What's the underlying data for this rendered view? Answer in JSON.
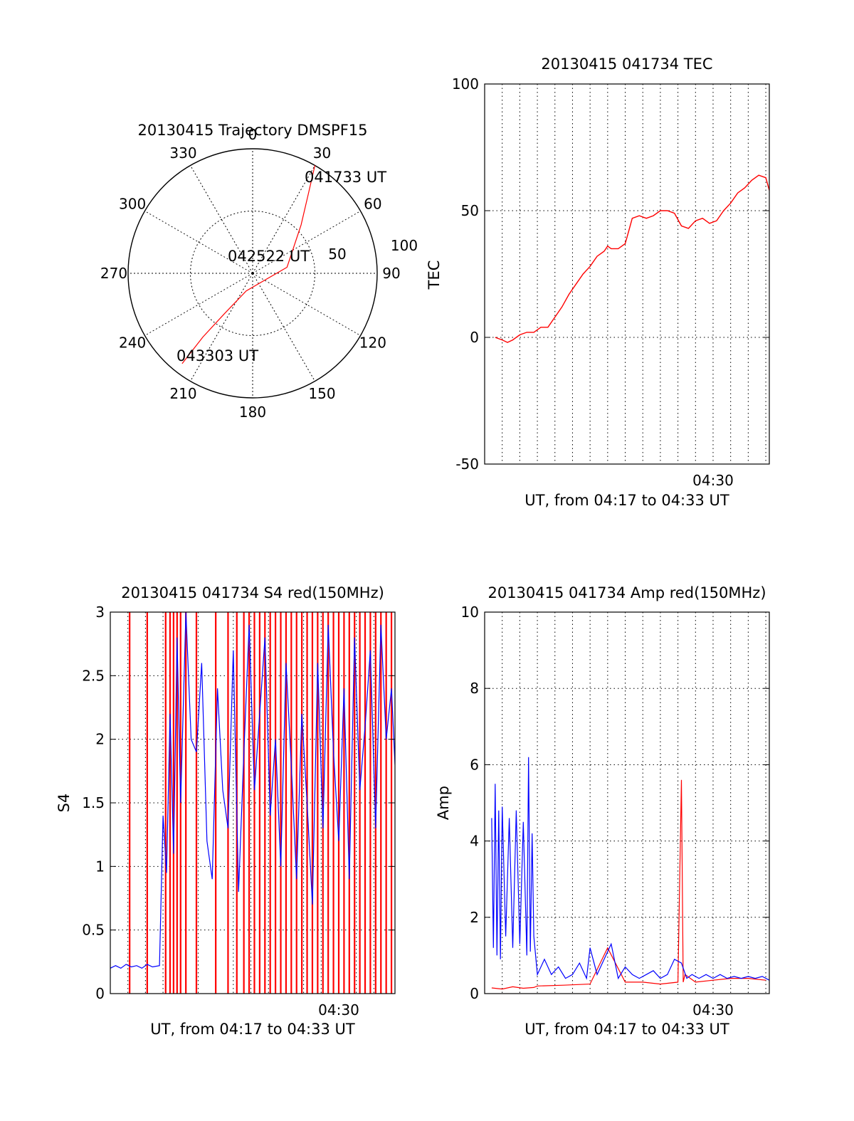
{
  "colors": {
    "red": "#ff0000",
    "blue": "#0000ff",
    "axes": "#000000",
    "grid": "#000000"
  },
  "chart_data": [
    {
      "id": "trajectory",
      "type": "polar",
      "title": "20130415 Trajectory DMSPF15",
      "angle_labels": [
        "0",
        "30",
        "60",
        "90",
        "120",
        "150",
        "180",
        "210",
        "240",
        "270",
        "300",
        "330"
      ],
      "angle_values": [
        0,
        30,
        60,
        90,
        120,
        150,
        180,
        210,
        240,
        270,
        300,
        330
      ],
      "radial_labels": [
        "50",
        "100"
      ],
      "radial_values": [
        50,
        100
      ],
      "rmax": 100,
      "grid": true,
      "annotations": [
        "041733 UT",
        "042522 UT",
        "043303 UT"
      ],
      "series": [
        {
          "color": "red",
          "points": [
            [
              30,
              100
            ],
            [
              35,
              78
            ],
            [
              45,
              55
            ],
            [
              80,
              28
            ],
            [
              200,
              15
            ],
            [
              215,
              40
            ],
            [
              218,
              65
            ],
            [
              218,
              92
            ]
          ]
        }
      ]
    },
    {
      "id": "tec",
      "type": "line",
      "title": "20130415 041734 TEC",
      "xlabel": "UT, from 04:17 to 04:33 UT",
      "ylabel": "TEC",
      "xlim": [
        0,
        16.2
      ],
      "ylim": [
        -50,
        100
      ],
      "yticks": [
        "100",
        "50",
        "0",
        "-50"
      ],
      "xtick_label": "04:30",
      "xtick_value": 13,
      "grid": true,
      "series": [
        {
          "color": "red",
          "x": [
            0.6,
            1.0,
            1.3,
            1.6,
            2.0,
            2.4,
            2.8,
            3.2,
            3.6,
            4.0,
            4.4,
            4.8,
            5.2,
            5.6,
            6.0,
            6.4,
            6.8,
            7.0,
            7.2,
            7.6,
            8.0,
            8.2,
            8.4,
            8.8,
            9.2,
            9.6,
            10.0,
            10.4,
            10.8,
            11.2,
            11.6,
            12.0,
            12.4,
            12.8,
            13.2,
            13.6,
            14.0,
            14.4,
            14.8,
            15.2,
            15.6,
            16.0,
            16.2
          ],
          "y": [
            0,
            -1,
            -2,
            -1,
            1,
            2,
            2,
            4,
            4,
            8,
            12,
            17,
            21,
            25,
            28,
            32,
            34,
            36,
            35,
            35,
            37,
            42,
            47,
            48,
            47,
            48,
            50,
            50,
            49,
            44,
            43,
            46,
            47,
            45,
            46,
            50,
            53,
            57,
            59,
            62,
            64,
            63,
            58
          ]
        }
      ]
    },
    {
      "id": "s4",
      "type": "line",
      "title": "20130415 041734 S4 red(150MHz)",
      "xlabel": "UT, from 04:17 to 04:33 UT",
      "ylabel": "S4",
      "xlim": [
        0,
        16.2
      ],
      "ylim": [
        0,
        3
      ],
      "yticks": [
        "3",
        "2.5",
        "2",
        "1.5",
        "1",
        "0.5",
        "0"
      ],
      "xtick_label": "04:30",
      "xtick_value": 13,
      "grid": true,
      "series": [
        {
          "color": "red",
          "spikes_x": [
            1.1,
            2.1,
            3.15,
            3.4,
            3.6,
            3.8,
            4.0,
            4.3,
            4.9,
            6.0,
            6.7,
            7.2,
            7.6,
            7.9,
            8.2,
            8.5,
            8.8,
            9.1,
            9.4,
            9.7,
            10.0,
            10.3,
            10.6,
            10.9,
            11.2,
            11.5,
            11.8,
            12.1,
            12.4,
            12.7,
            13.0,
            13.3,
            13.6,
            13.9,
            14.2,
            14.5,
            14.8,
            15.1,
            15.4,
            15.7,
            16.0
          ]
        },
        {
          "color": "blue",
          "x": [
            0.0,
            0.3,
            0.6,
            0.9,
            1.2,
            1.5,
            1.8,
            2.1,
            2.4,
            2.8,
            3.0,
            3.2,
            3.4,
            3.6,
            3.8,
            4.0,
            4.3,
            4.6,
            4.9,
            5.2,
            5.5,
            5.8,
            6.1,
            6.4,
            6.7,
            7.0,
            7.3,
            7.6,
            7.9,
            8.2,
            8.5,
            8.8,
            9.1,
            9.4,
            9.7,
            10.0,
            10.3,
            10.6,
            10.9,
            11.2,
            11.5,
            11.8,
            12.1,
            12.4,
            12.7,
            13.0,
            13.3,
            13.6,
            13.9,
            14.2,
            14.5,
            14.8,
            15.1,
            15.4,
            15.7,
            16.0,
            16.2
          ],
          "y": [
            0.2,
            0.22,
            0.2,
            0.23,
            0.21,
            0.22,
            0.2,
            0.23,
            0.21,
            0.22,
            1.4,
            0.95,
            2.2,
            1.1,
            2.8,
            1.5,
            3.0,
            2.0,
            1.9,
            2.6,
            1.2,
            0.9,
            2.4,
            1.6,
            1.3,
            2.7,
            0.8,
            1.9,
            2.9,
            1.6,
            2.2,
            2.8,
            1.4,
            2.0,
            1.0,
            2.6,
            1.8,
            0.9,
            2.2,
            1.5,
            0.7,
            2.6,
            1.3,
            2.9,
            1.9,
            1.2,
            2.4,
            0.9,
            2.8,
            1.6,
            2.1,
            2.7,
            1.3,
            2.9,
            2.0,
            2.4,
            1.8
          ]
        }
      ]
    },
    {
      "id": "amp",
      "type": "line",
      "title": "20130415 041734 Amp red(150MHz)",
      "xlabel": "UT, from 04:17 to 04:33 UT",
      "ylabel": "Amp",
      "xlim": [
        0,
        16.2
      ],
      "ylim": [
        0,
        10
      ],
      "yticks": [
        "10",
        "8",
        "6",
        "4",
        "2",
        "0"
      ],
      "xtick_label": "04:30",
      "xtick_value": 13,
      "grid": true,
      "series": [
        {
          "color": "red",
          "x": [
            0.4,
            1.0,
            1.6,
            2.2,
            2.8,
            3.0,
            4.5,
            6.0,
            7.0,
            8.0,
            9.0,
            10.0,
            11.0,
            11.2,
            11.3,
            11.4,
            12.0,
            13.0,
            14.0,
            15.0,
            16.0
          ],
          "y": [
            0.15,
            0.12,
            0.18,
            0.14,
            0.16,
            0.2,
            0.22,
            0.25,
            1.2,
            0.3,
            0.3,
            0.25,
            0.3,
            5.6,
            0.3,
            0.5,
            0.3,
            0.35,
            0.4,
            0.4,
            0.35
          ]
        },
        {
          "color": "blue",
          "x": [
            0.4,
            0.5,
            0.6,
            0.7,
            0.8,
            0.9,
            1.0,
            1.2,
            1.4,
            1.6,
            1.8,
            2.0,
            2.2,
            2.4,
            2.5,
            2.6,
            2.7,
            2.8,
            3.0,
            3.4,
            3.8,
            4.2,
            4.6,
            5.0,
            5.4,
            5.8,
            6.0,
            6.4,
            6.8,
            7.2,
            7.6,
            8.0,
            8.4,
            8.8,
            9.2,
            9.6,
            10.0,
            10.4,
            10.8,
            11.2,
            11.5,
            11.8,
            12.2,
            12.6,
            13.0,
            13.4,
            13.8,
            14.2,
            14.6,
            15.0,
            15.4,
            15.8,
            16.2
          ],
          "y": [
            4.6,
            1.2,
            5.5,
            1.0,
            4.8,
            0.9,
            4.9,
            1.5,
            4.6,
            1.2,
            4.8,
            1.3,
            4.5,
            1.0,
            6.2,
            1.1,
            4.2,
            1.5,
            0.5,
            0.9,
            0.5,
            0.7,
            0.4,
            0.5,
            0.8,
            0.4,
            1.2,
            0.5,
            0.9,
            1.3,
            0.4,
            0.7,
            0.5,
            0.4,
            0.5,
            0.6,
            0.4,
            0.5,
            0.9,
            0.8,
            0.4,
            0.5,
            0.4,
            0.5,
            0.4,
            0.5,
            0.4,
            0.45,
            0.4,
            0.45,
            0.4,
            0.45,
            0.35
          ]
        }
      ]
    }
  ]
}
